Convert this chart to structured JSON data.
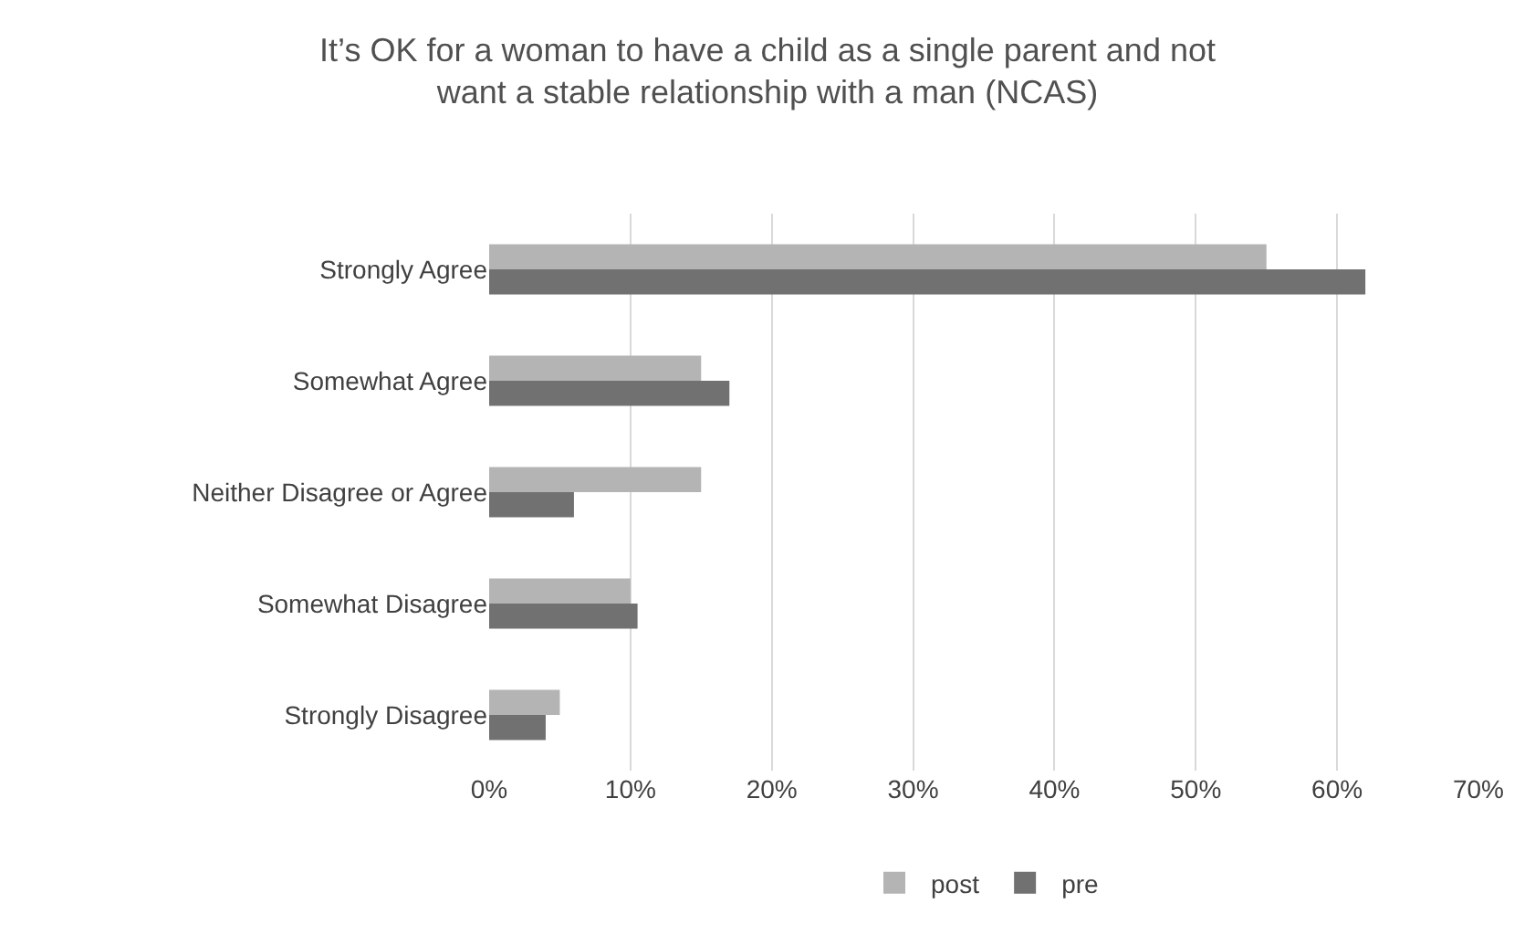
{
  "chart_data": {
    "type": "bar",
    "orientation": "horizontal",
    "title": "It’s OK for a woman to have a child as a single parent and not\nwant a stable relationship with a man (NCAS)",
    "categories": [
      "Strongly Agree",
      "Somewhat Agree",
      "Neither Disagree or Agree",
      "Somewhat Disagree",
      "Strongly Disagree"
    ],
    "series": [
      {
        "name": "post",
        "color": "#b4b4b4",
        "values": [
          55,
          15,
          15,
          10,
          5
        ]
      },
      {
        "name": "pre",
        "color": "#717171",
        "values": [
          62,
          17,
          6,
          10.5,
          4
        ]
      }
    ],
    "xlim": [
      0,
      70
    ],
    "xticks": [
      {
        "value": 0,
        "label": "0%"
      },
      {
        "value": 10,
        "label": "10%"
      },
      {
        "value": 20,
        "label": "20%"
      },
      {
        "value": 30,
        "label": "30%"
      },
      {
        "value": 40,
        "label": "40%"
      },
      {
        "value": 50,
        "label": "50%"
      },
      {
        "value": 60,
        "label": "60%"
      },
      {
        "value": 70,
        "label": "70%"
      }
    ],
    "grid": "x",
    "legend": "bottom"
  }
}
